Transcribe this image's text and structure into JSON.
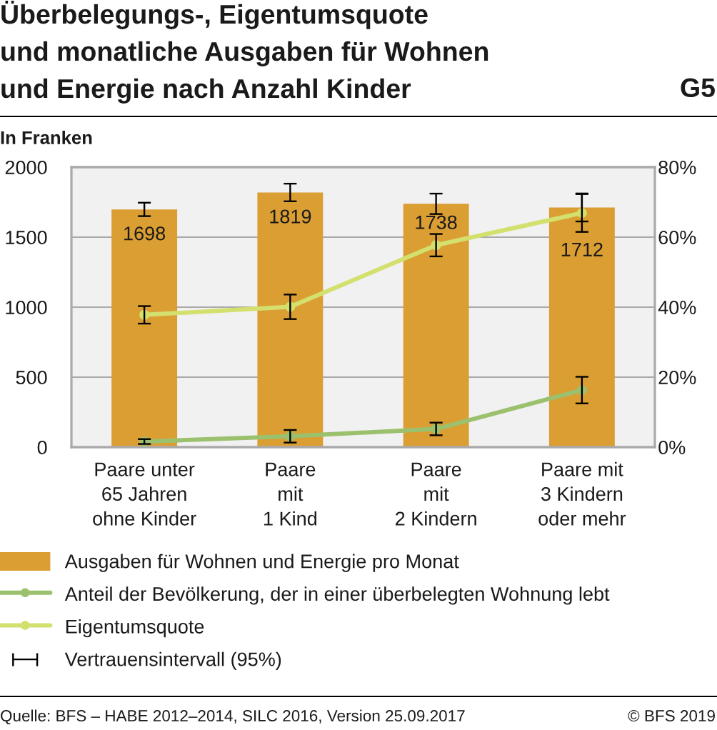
{
  "chart_data": {
    "type": "bar",
    "title": "Überbelegungs-, Eigentumsquote\nund monatliche Ausgaben für Wohnen\nund Energie nach Anzahl Kinder",
    "ylabel": "In Franken",
    "categories": [
      "Paare unter\n65 Jahren\nohne Kinder",
      "Paare\nmit\n1 Kind",
      "Paare\nmit\n2 Kindern",
      "Paare mit\n3 Kindern\noder mehr"
    ],
    "series": [
      {
        "name": "Ausgaben für Wohnen und Energie pro Monat",
        "color": "#da9e33",
        "values": [
          1698,
          1819,
          1738,
          1712
        ],
        "errors": [
          48,
          63,
          73,
          100
        ],
        "value_labels": [
          "1698",
          "1819",
          "1738",
          "1712"
        ]
      },
      {
        "name": "Anteil der Bevölkerung, der in einer überbelegten Wohnung lebt",
        "type": "line",
        "axis": "y2",
        "color": "#9cc16e",
        "values": [
          1.6,
          3.1,
          5.2,
          16.3
        ],
        "errors": [
          0.7,
          1.8,
          1.8,
          3.8
        ]
      },
      {
        "name": "Eigentumsquote",
        "type": "line",
        "axis": "y2",
        "color": "#d4e06e",
        "values": [
          37.8,
          40.1,
          57.7,
          66.9
        ],
        "errors": [
          2.5,
          3.5,
          3.2,
          5.4
        ]
      }
    ],
    "ylim": [
      0,
      2000
    ],
    "yticks": [
      0,
      500,
      1000,
      1500,
      2000
    ],
    "y2lim": [
      0,
      80
    ],
    "y2ticks": [
      {
        "value": 0,
        "label": "0%"
      },
      {
        "value": 20,
        "label": "20%"
      },
      {
        "value": 40,
        "label": "40%"
      },
      {
        "value": 60,
        "label": "60%"
      },
      {
        "value": 80,
        "label": "80%"
      }
    ],
    "grid": "y",
    "legend": "bottom",
    "marker": "circle",
    "line_style": "solid",
    "annotations": [
      "G5",
      "Vertrauensintervall (95%)",
      "Quelle: BFS – HABE 2012–2014, SILC 2016, Version 25.09.2017",
      "© BFS 2019"
    ]
  }
}
